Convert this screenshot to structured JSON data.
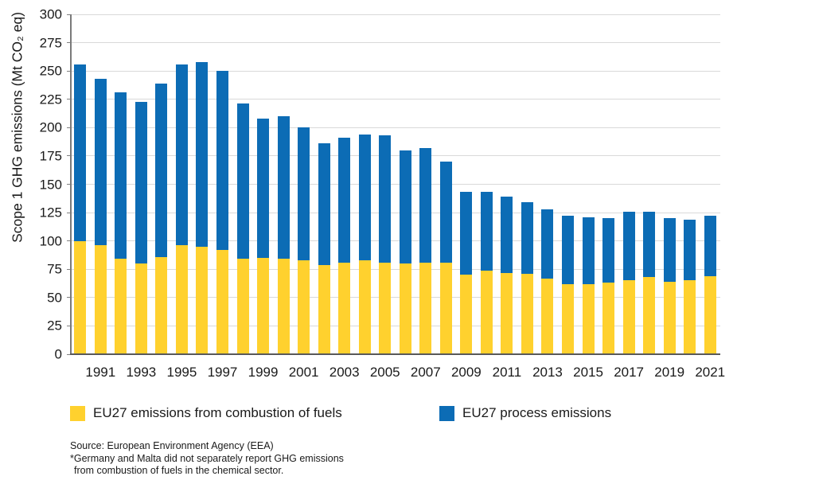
{
  "chart_data": {
    "type": "bar",
    "stacked": true,
    "ylabel": "Scope 1 GHG emissions (Mt CO₂ eq)",
    "ylim": [
      0,
      300
    ],
    "ytick_step": 25,
    "grid": true,
    "legend_position": "bottom",
    "x_start_year": 1990,
    "xtick_labels": [
      "1991",
      "1993",
      "1995",
      "1997",
      "1999",
      "2001",
      "2003",
      "2005",
      "2007",
      "2009",
      "2011",
      "2013",
      "2015",
      "2017",
      "2019",
      "2021"
    ],
    "categories": [
      1990,
      1991,
      1992,
      1993,
      1994,
      1995,
      1996,
      1997,
      1998,
      1999,
      2000,
      2001,
      2002,
      2003,
      2004,
      2005,
      2006,
      2007,
      2008,
      2009,
      2010,
      2011,
      2012,
      2013,
      2014,
      2015,
      2016,
      2017,
      2018,
      2019,
      2020,
      2021
    ],
    "series": [
      {
        "name": "EU27 emissions from combustion of fuels",
        "color": "#FFD12E",
        "values": [
          100,
          96,
          84,
          80,
          86,
          96,
          95,
          92,
          84,
          85,
          84,
          83,
          79,
          81,
          83,
          81,
          80,
          81,
          81,
          70,
          74,
          72,
          71,
          67,
          62,
          62,
          63,
          65,
          68,
          64,
          65,
          69
        ]
      },
      {
        "name": "EU27 process emissions",
        "color": "#0C6CB5",
        "values": [
          156,
          147,
          147,
          143,
          153,
          160,
          163,
          158,
          137,
          123,
          126,
          117,
          107,
          110,
          111,
          112,
          100,
          101,
          89,
          73,
          69,
          67,
          63,
          61,
          60,
          59,
          57,
          61,
          58,
          56,
          54,
          53
        ]
      }
    ],
    "totals": [
      256,
      243,
      231,
      223,
      239,
      256,
      258,
      250,
      221,
      208,
      210,
      200,
      186,
      191,
      194,
      193,
      180,
      182,
      170,
      143,
      143,
      139,
      134,
      128,
      122,
      121,
      120,
      126,
      126,
      120,
      119,
      122
    ]
  },
  "legend": {
    "item1": "EU27 emissions from combustion of fuels",
    "item2": "EU27 process emissions"
  },
  "footer": {
    "source": "Source: European Environment Agency (EEA)",
    "note_line1": "*Germany and Malta did not separately report GHG emissions",
    "note_line2": "from combustion of fuels in the chemical sector."
  }
}
